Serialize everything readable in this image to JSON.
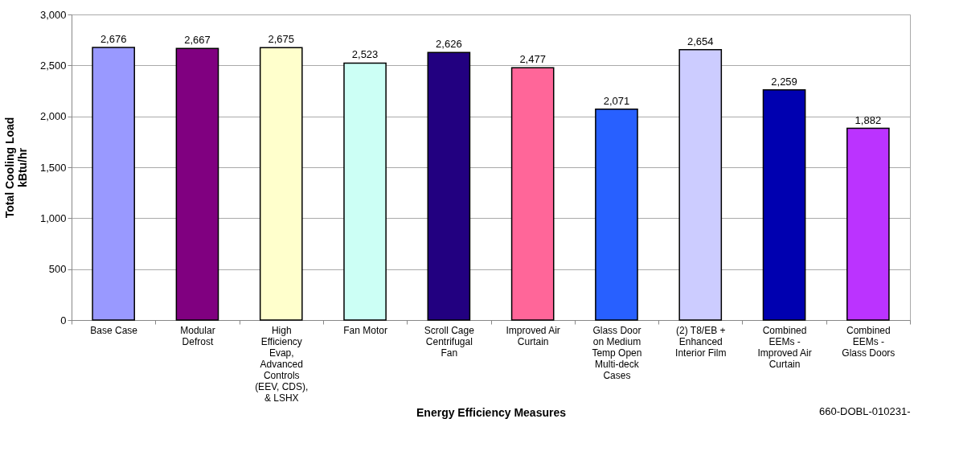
{
  "chart_data": {
    "type": "bar",
    "xlabel": "Energy Efficiency Measures",
    "ylabel": "Total Cooling Load kBtu/hr",
    "categories": [
      "Base Case",
      "Modular Defrost",
      "High Efficiency Evap, Advanced Controls (EEV, CDS), & LSHX",
      "Fan Motor",
      "Scroll Cage Centrifugal Fan",
      "Improved Air Curtain",
      "Glass Door on Medium Temp Open Multi-deck Cases",
      "(2) T8/EB + Enhanced Interior Film",
      "Combined EEMs - Improved Air Curtain",
      "Combined EEMs - Glass Doors"
    ],
    "values": [
      2676,
      2667,
      2675,
      2523,
      2626,
      2477,
      2071,
      2654,
      2259,
      1882
    ],
    "colors": [
      "#9999ff",
      "#800080",
      "#ffffcc",
      "#ccfff5",
      "#220080",
      "#ff6699",
      "#2860ff",
      "#ccccff",
      "#0000b0",
      "#bb33ff"
    ],
    "value_labels": [
      "2,676",
      "2,667",
      "2,675",
      "2,523",
      "2,626",
      "2,477",
      "2,071",
      "2,654",
      "2,259",
      "1,882"
    ],
    "ylim": [
      0,
      3000
    ],
    "yticks": [
      0,
      500,
      {
        "value": 1000,
        "label": "1,000"
      },
      {
        "value": 1500,
        "label": "1,500"
      },
      {
        "value": 2000,
        "label": "2,000"
      },
      {
        "value": 2500,
        "label": "2,500"
      },
      {
        "value": 3000,
        "label": "3,000"
      }
    ],
    "grid": "y",
    "annotations": [
      "660-DOBL-010231-"
    ]
  }
}
